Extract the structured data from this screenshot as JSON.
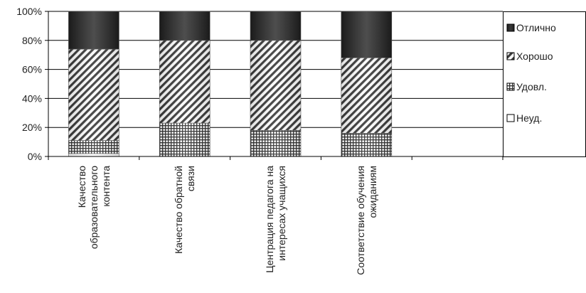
{
  "chart_data": {
    "type": "bar",
    "stacked": true,
    "ylim": [
      0,
      100
    ],
    "y_ticks": [
      "0%",
      "20%",
      "40%",
      "60%",
      "80%",
      "100%"
    ],
    "grid": true,
    "legend_position": "right",
    "categories": [
      [
        "Качество",
        "образовательного",
        "контента"
      ],
      [
        "Качество обратной",
        "связи"
      ],
      [
        "Центрация педагога на",
        "интересах учащихся"
      ],
      [
        "Соответствие обучения",
        "ожиданиям"
      ],
      [
        ""
      ]
    ],
    "series": [
      {
        "name": "Неуд.",
        "values": [
          2,
          0,
          0,
          0,
          null
        ],
        "pattern": "none"
      },
      {
        "name": "Удовл.",
        "values": [
          9,
          23,
          18,
          16,
          null
        ],
        "pattern": "grid"
      },
      {
        "name": "Хорошо",
        "values": [
          63,
          57,
          62,
          52,
          null
        ],
        "pattern": "diagonal"
      },
      {
        "name": "Отлично",
        "values": [
          26,
          20,
          20,
          32,
          null
        ],
        "pattern": "dark"
      }
    ],
    "legend_order": [
      "Отлично",
      "Хорошо",
      "Удовл.",
      "Неуд."
    ],
    "colors": {
      "axis": "#000000",
      "gridline": "#000000",
      "dark": "#222222",
      "stripe": "#333333"
    }
  }
}
